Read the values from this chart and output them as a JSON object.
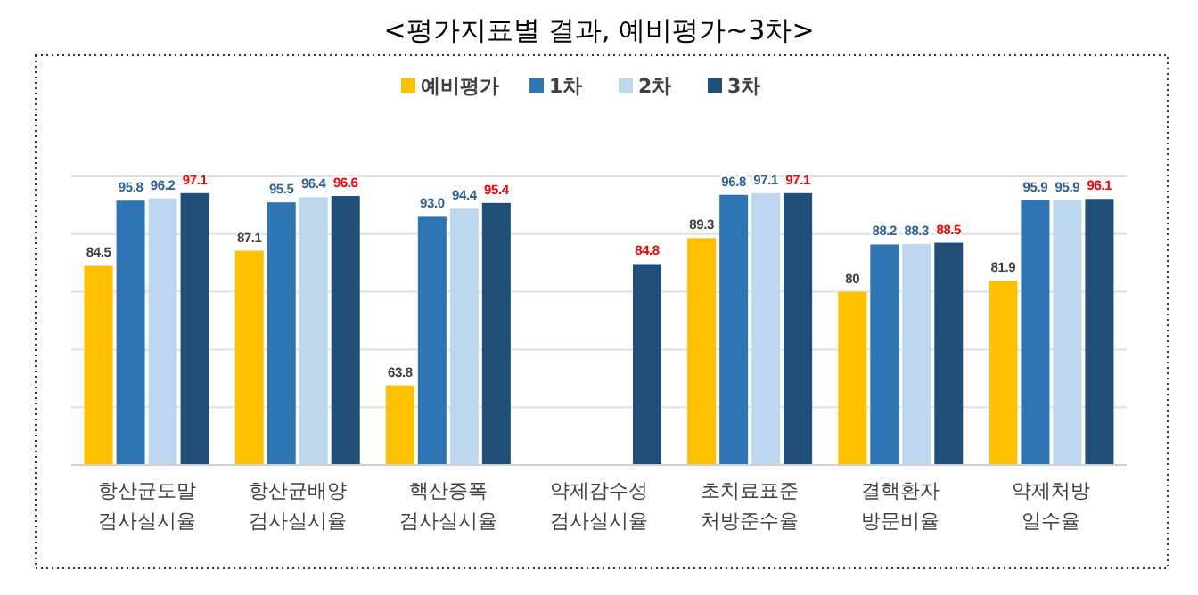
{
  "chart_data": {
    "type": "bar",
    "title": "<평가지표별 결과, 예비평가~3차>",
    "categories": [
      "항산균도말\n검사실시율",
      "항산균배양\n검사실시율",
      "핵산증폭\n검사실시율",
      "약제감수성\n검사실시율",
      "초치료표준\n처방준수율",
      "결핵환자\n방문비율",
      "약제처방\n일수율"
    ],
    "series": [
      {
        "name": "예비평가",
        "color": "#ffc000",
        "values": [
          84.5,
          87.1,
          63.8,
          null,
          89.3,
          80,
          81.9
        ],
        "value_labels": [
          "84.5",
          "87.1",
          "63.8",
          null,
          "89.3",
          "80",
          "81.9"
        ]
      },
      {
        "name": "1차",
        "color": "#2e75b6",
        "values": [
          95.8,
          95.5,
          93.0,
          null,
          96.8,
          88.2,
          95.9
        ],
        "value_labels": [
          "95.8",
          "95.5",
          "93.0",
          null,
          "96.8",
          "88.2",
          "95.9"
        ]
      },
      {
        "name": "2차",
        "color": "#bdd7ee",
        "values": [
          96.2,
          96.4,
          94.4,
          null,
          97.1,
          88.3,
          95.9
        ],
        "value_labels": [
          "96.2",
          "96.4",
          "94.4",
          null,
          "97.1",
          "88.3",
          "95.9"
        ]
      },
      {
        "name": "3차",
        "color": "#1f4e79",
        "values": [
          97.1,
          96.6,
          95.4,
          84.8,
          97.1,
          88.5,
          96.1
        ],
        "value_labels": [
          "97.1",
          "96.6",
          "95.4",
          "84.8",
          "97.1",
          "88.5",
          "96.1"
        ]
      }
    ],
    "ylim": [
      50,
      100
    ],
    "yticks": [
      {
        "value": 50,
        "label": null
      },
      {
        "value": 60,
        "label": null
      },
      {
        "value": 70,
        "label": null
      },
      {
        "value": 80,
        "label": null
      },
      {
        "value": 90,
        "label": null
      },
      {
        "value": 100,
        "label": null
      }
    ],
    "tick_labels": "x",
    "grid": "y",
    "legend": "top"
  }
}
